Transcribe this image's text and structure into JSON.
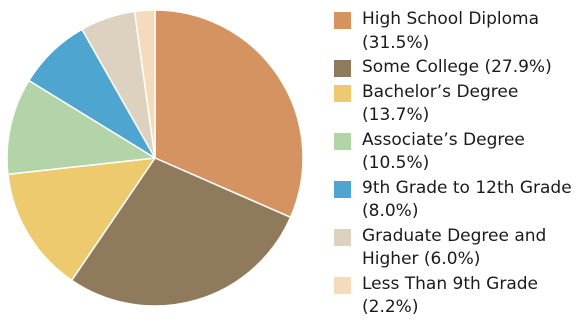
{
  "chart_data": {
    "type": "pie",
    "series": [
      {
        "label": "High School Diploma",
        "value": 31.5,
        "legend_text": "High School Diploma (31.5%)",
        "color": "#d49360"
      },
      {
        "label": "Some College",
        "value": 27.9,
        "legend_text": "Some College (27.9%)",
        "color": "#8f7a5c"
      },
      {
        "label": "Bachelor’s Degree",
        "value": 13.7,
        "legend_text": "Bachelor’s Degree (13.7%)",
        "color": "#edca6e"
      },
      {
        "label": "Associate’s Degree",
        "value": 10.5,
        "legend_text": "Associate’s Degree (10.5%)",
        "color": "#b2d4a8"
      },
      {
        "label": "9th Grade to 12th Grade",
        "value": 8.0,
        "legend_text": "9th Grade to 12th Grade (8.0%)",
        "color": "#4ea5d0"
      },
      {
        "label": "Graduate Degree and Higher",
        "value": 6.0,
        "legend_text": "Graduate Degree and Higher (6.0%)",
        "color": "#ddd1bf"
      },
      {
        "label": "Less Than 9th Grade",
        "value": 2.2,
        "legend_text": "Less Than 9th Grade (2.2%)",
        "color": "#f4dbbb"
      }
    ],
    "legend_position": "right",
    "start_angle": "12 o'clock",
    "direction": "clockwise"
  }
}
